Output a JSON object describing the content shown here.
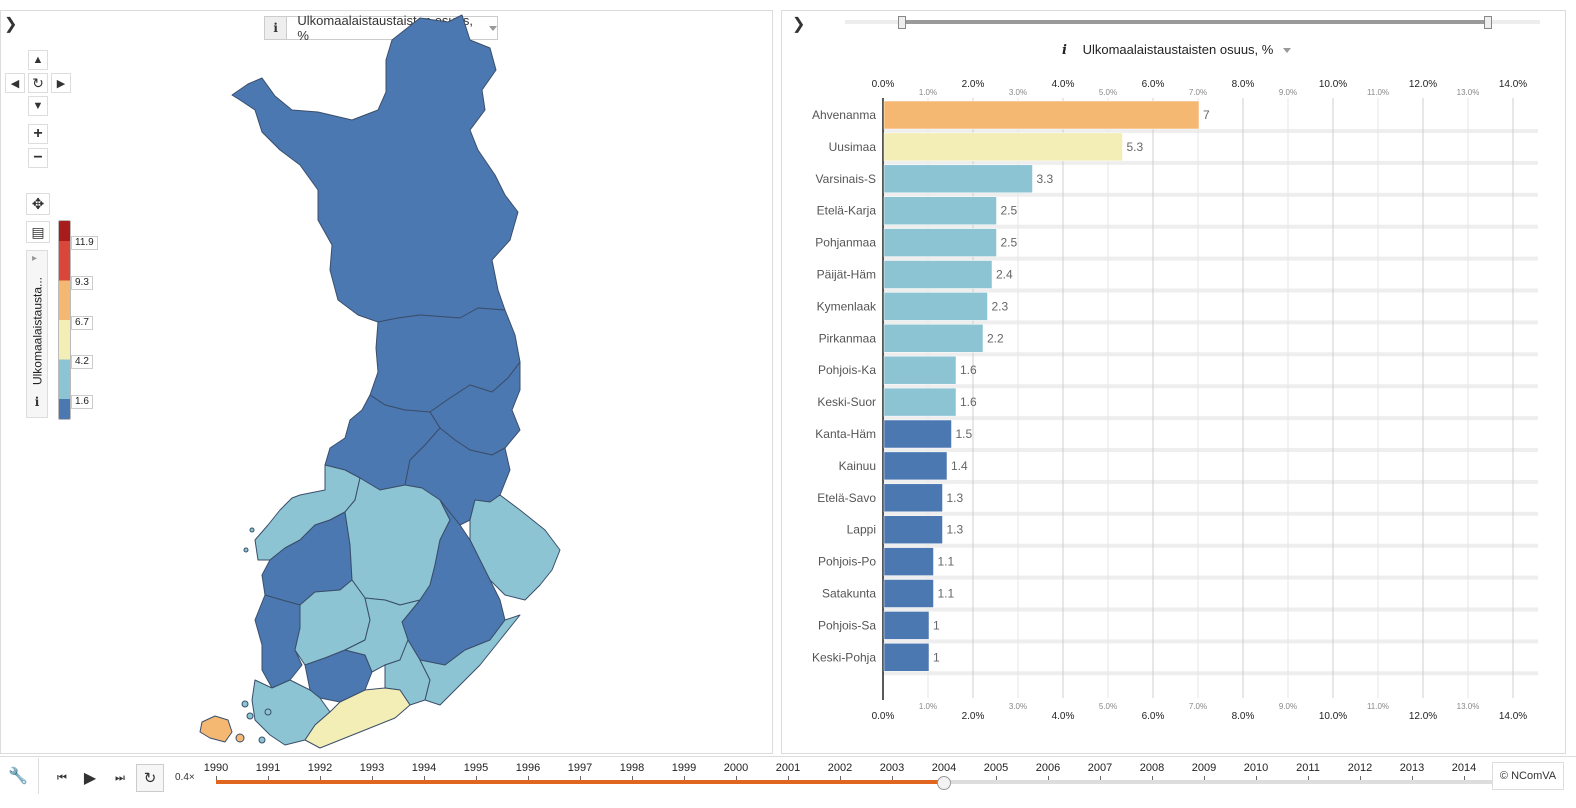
{
  "map": {
    "indicator_label": "Ulkomaalaistaustaisten osuus, %",
    "info_icon": "i",
    "legend": {
      "title": "Ulkomaalaistausta...",
      "info_icon": "i",
      "breaks": [
        "11.9",
        "9.3",
        "6.7",
        "4.2",
        "1.6"
      ],
      "colors": [
        "#a81c1c",
        "#d9473a",
        "#f5b873",
        "#f3edb6",
        "#8cc4d3",
        "#4c78b2"
      ]
    },
    "controls": {
      "pan_up": "▲",
      "pan_left": "◀",
      "reset": "↻",
      "pan_right": "▶",
      "pan_down": "▼",
      "zoom_in": "+",
      "zoom_out": "−",
      "move": "✥",
      "layout": "▤",
      "legend_toggle": "▸"
    }
  },
  "chart_data": {
    "type": "bar",
    "orientation": "horizontal",
    "title": "Ulkomaalaistaustaisten osuus, %",
    "categories": [
      "Ahvenanma",
      "Uusimaa",
      "Varsinais-S",
      "Etelä-Karja",
      "Pohjanmaa",
      "Päijät-Häm",
      "Kymenlaak",
      "Pirkanmaa",
      "Pohjois-Ka",
      "Keski-Suor",
      "Kanta-Häm",
      "Kainuu",
      "Etelä-Savo",
      "Lappi",
      "Pohjois-Po",
      "Satakunta",
      "Pohjois-Sa",
      "Keski-Pohja"
    ],
    "values": [
      7,
      5.3,
      3.3,
      2.5,
      2.5,
      2.4,
      2.3,
      2.2,
      1.6,
      1.6,
      1.5,
      1.4,
      1.3,
      1.3,
      1.1,
      1.1,
      1,
      1
    ],
    "value_labels": [
      "7",
      "5.3",
      "3.3",
      "2.5",
      "2.5",
      "2.4",
      "2.3",
      "2.2",
      "1.6",
      "1.6",
      "1.5",
      "1.4",
      "1.3",
      "1.3",
      "1.1",
      "1.1",
      "1",
      "1"
    ],
    "colors": [
      "#f5b873",
      "#f3edb6",
      "#8cc4d3",
      "#8cc4d3",
      "#8cc4d3",
      "#8cc4d3",
      "#8cc4d3",
      "#8cc4d3",
      "#8cc4d3",
      "#8cc4d3",
      "#4c78b2",
      "#4c78b2",
      "#4c78b2",
      "#4c78b2",
      "#4c78b2",
      "#4c78b2",
      "#4c78b2",
      "#4c78b2"
    ],
    "xlim": [
      0,
      14
    ],
    "major_ticks": [
      "0.0%",
      "2.0%",
      "4.0%",
      "6.0%",
      "8.0%",
      "10.0%",
      "12.0%",
      "14.0%"
    ],
    "minor_ticks": [
      "1.0%",
      "3.0%",
      "5.0%",
      "7.0%",
      "9.0%",
      "11.0%",
      "13.0%"
    ],
    "grid": true
  },
  "timeline": {
    "years": [
      "1990",
      "1991",
      "1992",
      "1993",
      "1994",
      "1995",
      "1996",
      "1997",
      "1998",
      "1999",
      "2000",
      "2001",
      "2002",
      "2003",
      "2004",
      "2005",
      "2006",
      "2007",
      "2008",
      "2009",
      "2010",
      "2011",
      "2012",
      "2013",
      "2014"
    ],
    "selected_year": "2004",
    "speed": "0.4×",
    "tools_icon": "🔧",
    "prev_icon": "⏮",
    "play_icon": "▶",
    "next_icon": "⏭",
    "loop_icon": "↻"
  },
  "copyright": "© NComVA",
  "chevron": "❯"
}
